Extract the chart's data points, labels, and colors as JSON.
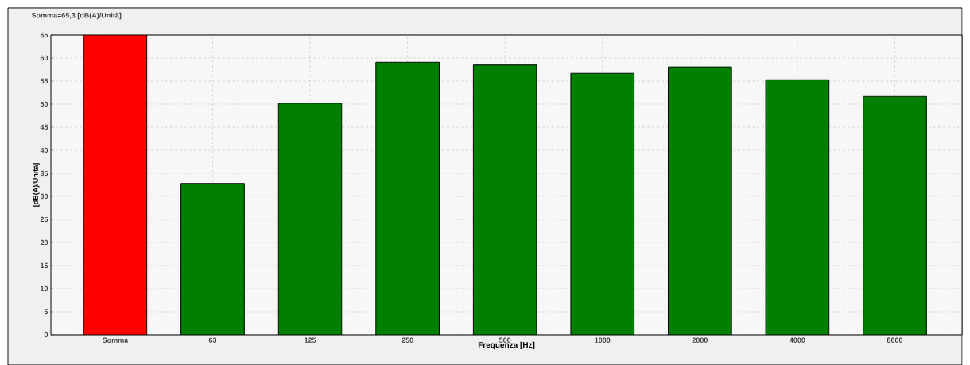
{
  "chart_data": {
    "type": "bar",
    "title": "Somma=65,3 [dB(A)/Unità]",
    "xlabel": "Frequenza [Hz]",
    "ylabel": "[dB(A)/Unità]",
    "categories": [
      "Somma",
      "63",
      "125",
      "250",
      "500",
      "1000",
      "2000",
      "4000",
      "8000"
    ],
    "values": [
      65,
      32.8,
      50.2,
      59.1,
      58.5,
      56.7,
      58.1,
      55.3,
      51.7
    ],
    "colors": [
      "#ff0000",
      "#007f00",
      "#007f00",
      "#007f00",
      "#007f00",
      "#007f00",
      "#007f00",
      "#007f00",
      "#007f00"
    ],
    "ylim": [
      0,
      65
    ],
    "yticks": [
      0,
      5,
      10,
      15,
      20,
      25,
      30,
      35,
      40,
      45,
      50,
      55,
      60,
      65
    ],
    "grid": true
  }
}
